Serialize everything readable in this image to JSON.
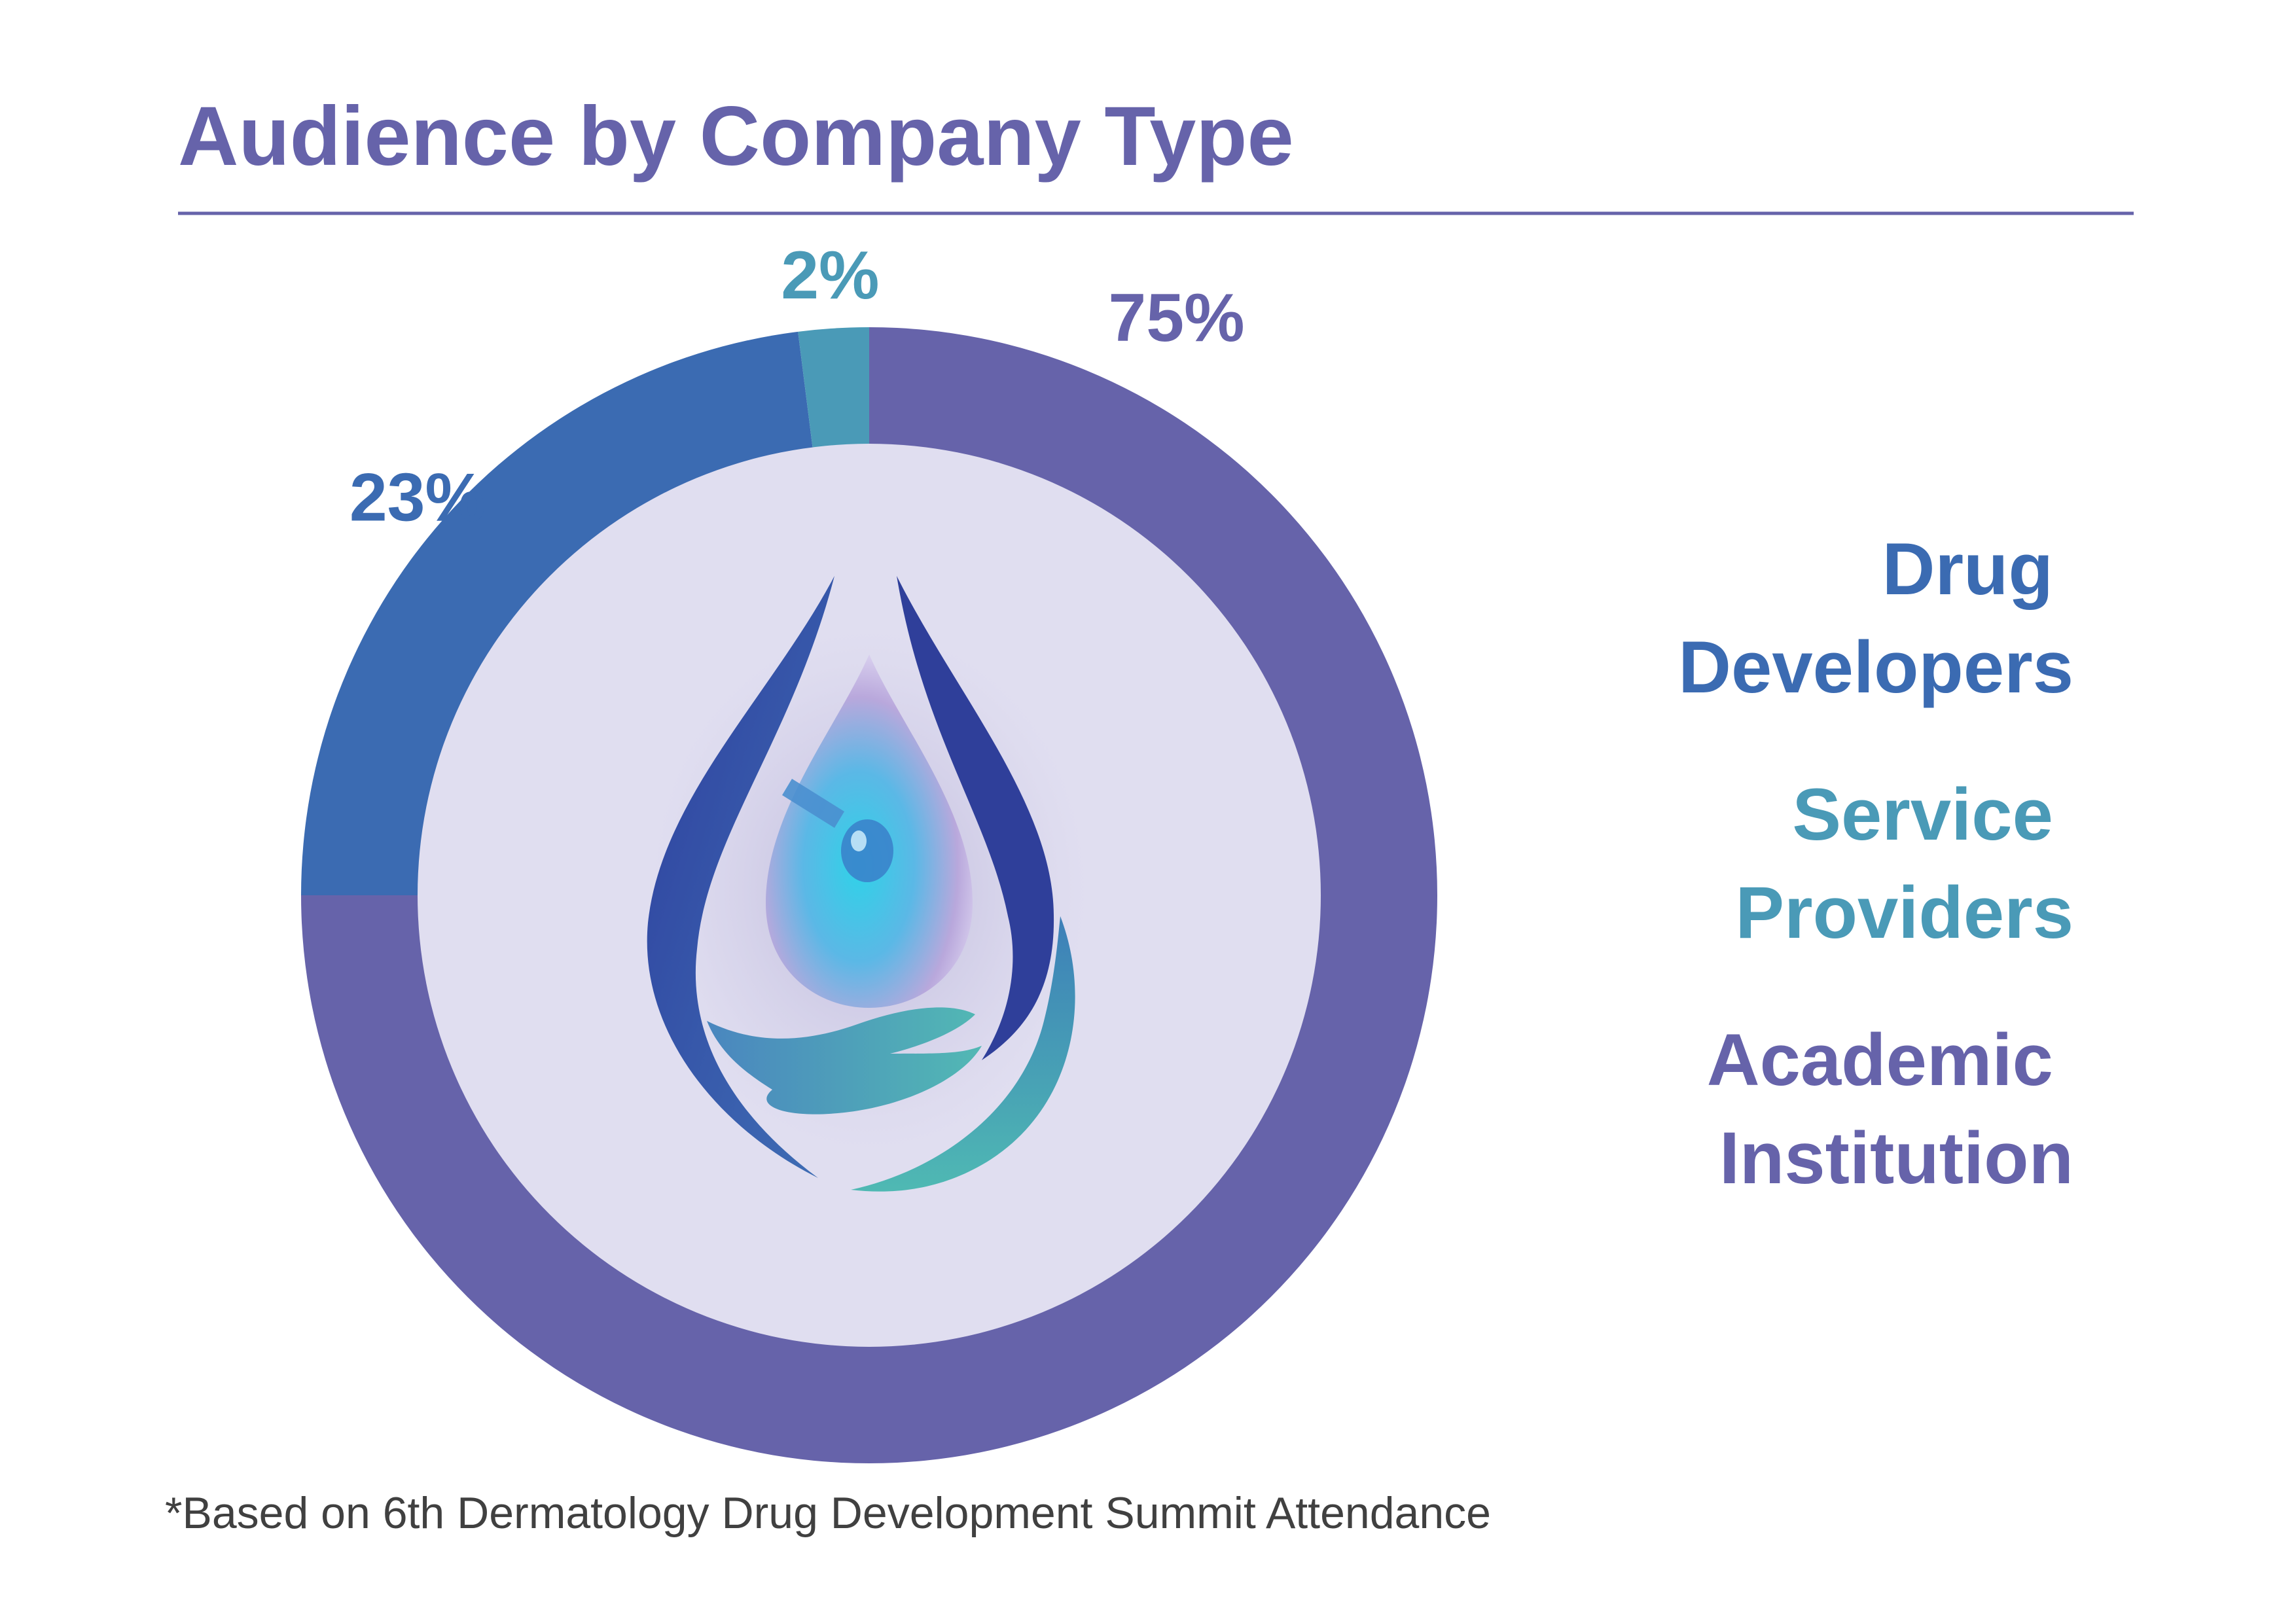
{
  "chart_data": {
    "type": "pie",
    "title": "Audience by Company Type",
    "categories": [
      "Academic Institution",
      "Drug Developers",
      "Service Providers"
    ],
    "values": [
      75,
      23,
      2
    ],
    "value_labels": [
      "75%",
      "23%",
      "2%"
    ],
    "legend": [
      {
        "lines": [
          "Drug",
          "Developers"
        ],
        "color": "#3b6bb2"
      },
      {
        "lines": [
          "Service",
          "Providers"
        ],
        "color": "#4a9ab7"
      },
      {
        "lines": [
          "Academic",
          "Institution"
        ],
        "color": "#6663aa"
      }
    ],
    "legend_position": "right",
    "colors": {
      "Academic Institution": "#6663aa",
      "Drug Developers": "#3b6bb2",
      "Service Providers": "#4a9ab7"
    },
    "footnote": "*Based on 6th Dermatology Drug Development Summit Attendance"
  },
  "colors": {
    "title": "#6663aa",
    "rule": "#6663aa",
    "inner_disc": "#e0def0",
    "footnote": "#404040"
  },
  "icons": [
    "water-drop-hand-logo-icon"
  ]
}
